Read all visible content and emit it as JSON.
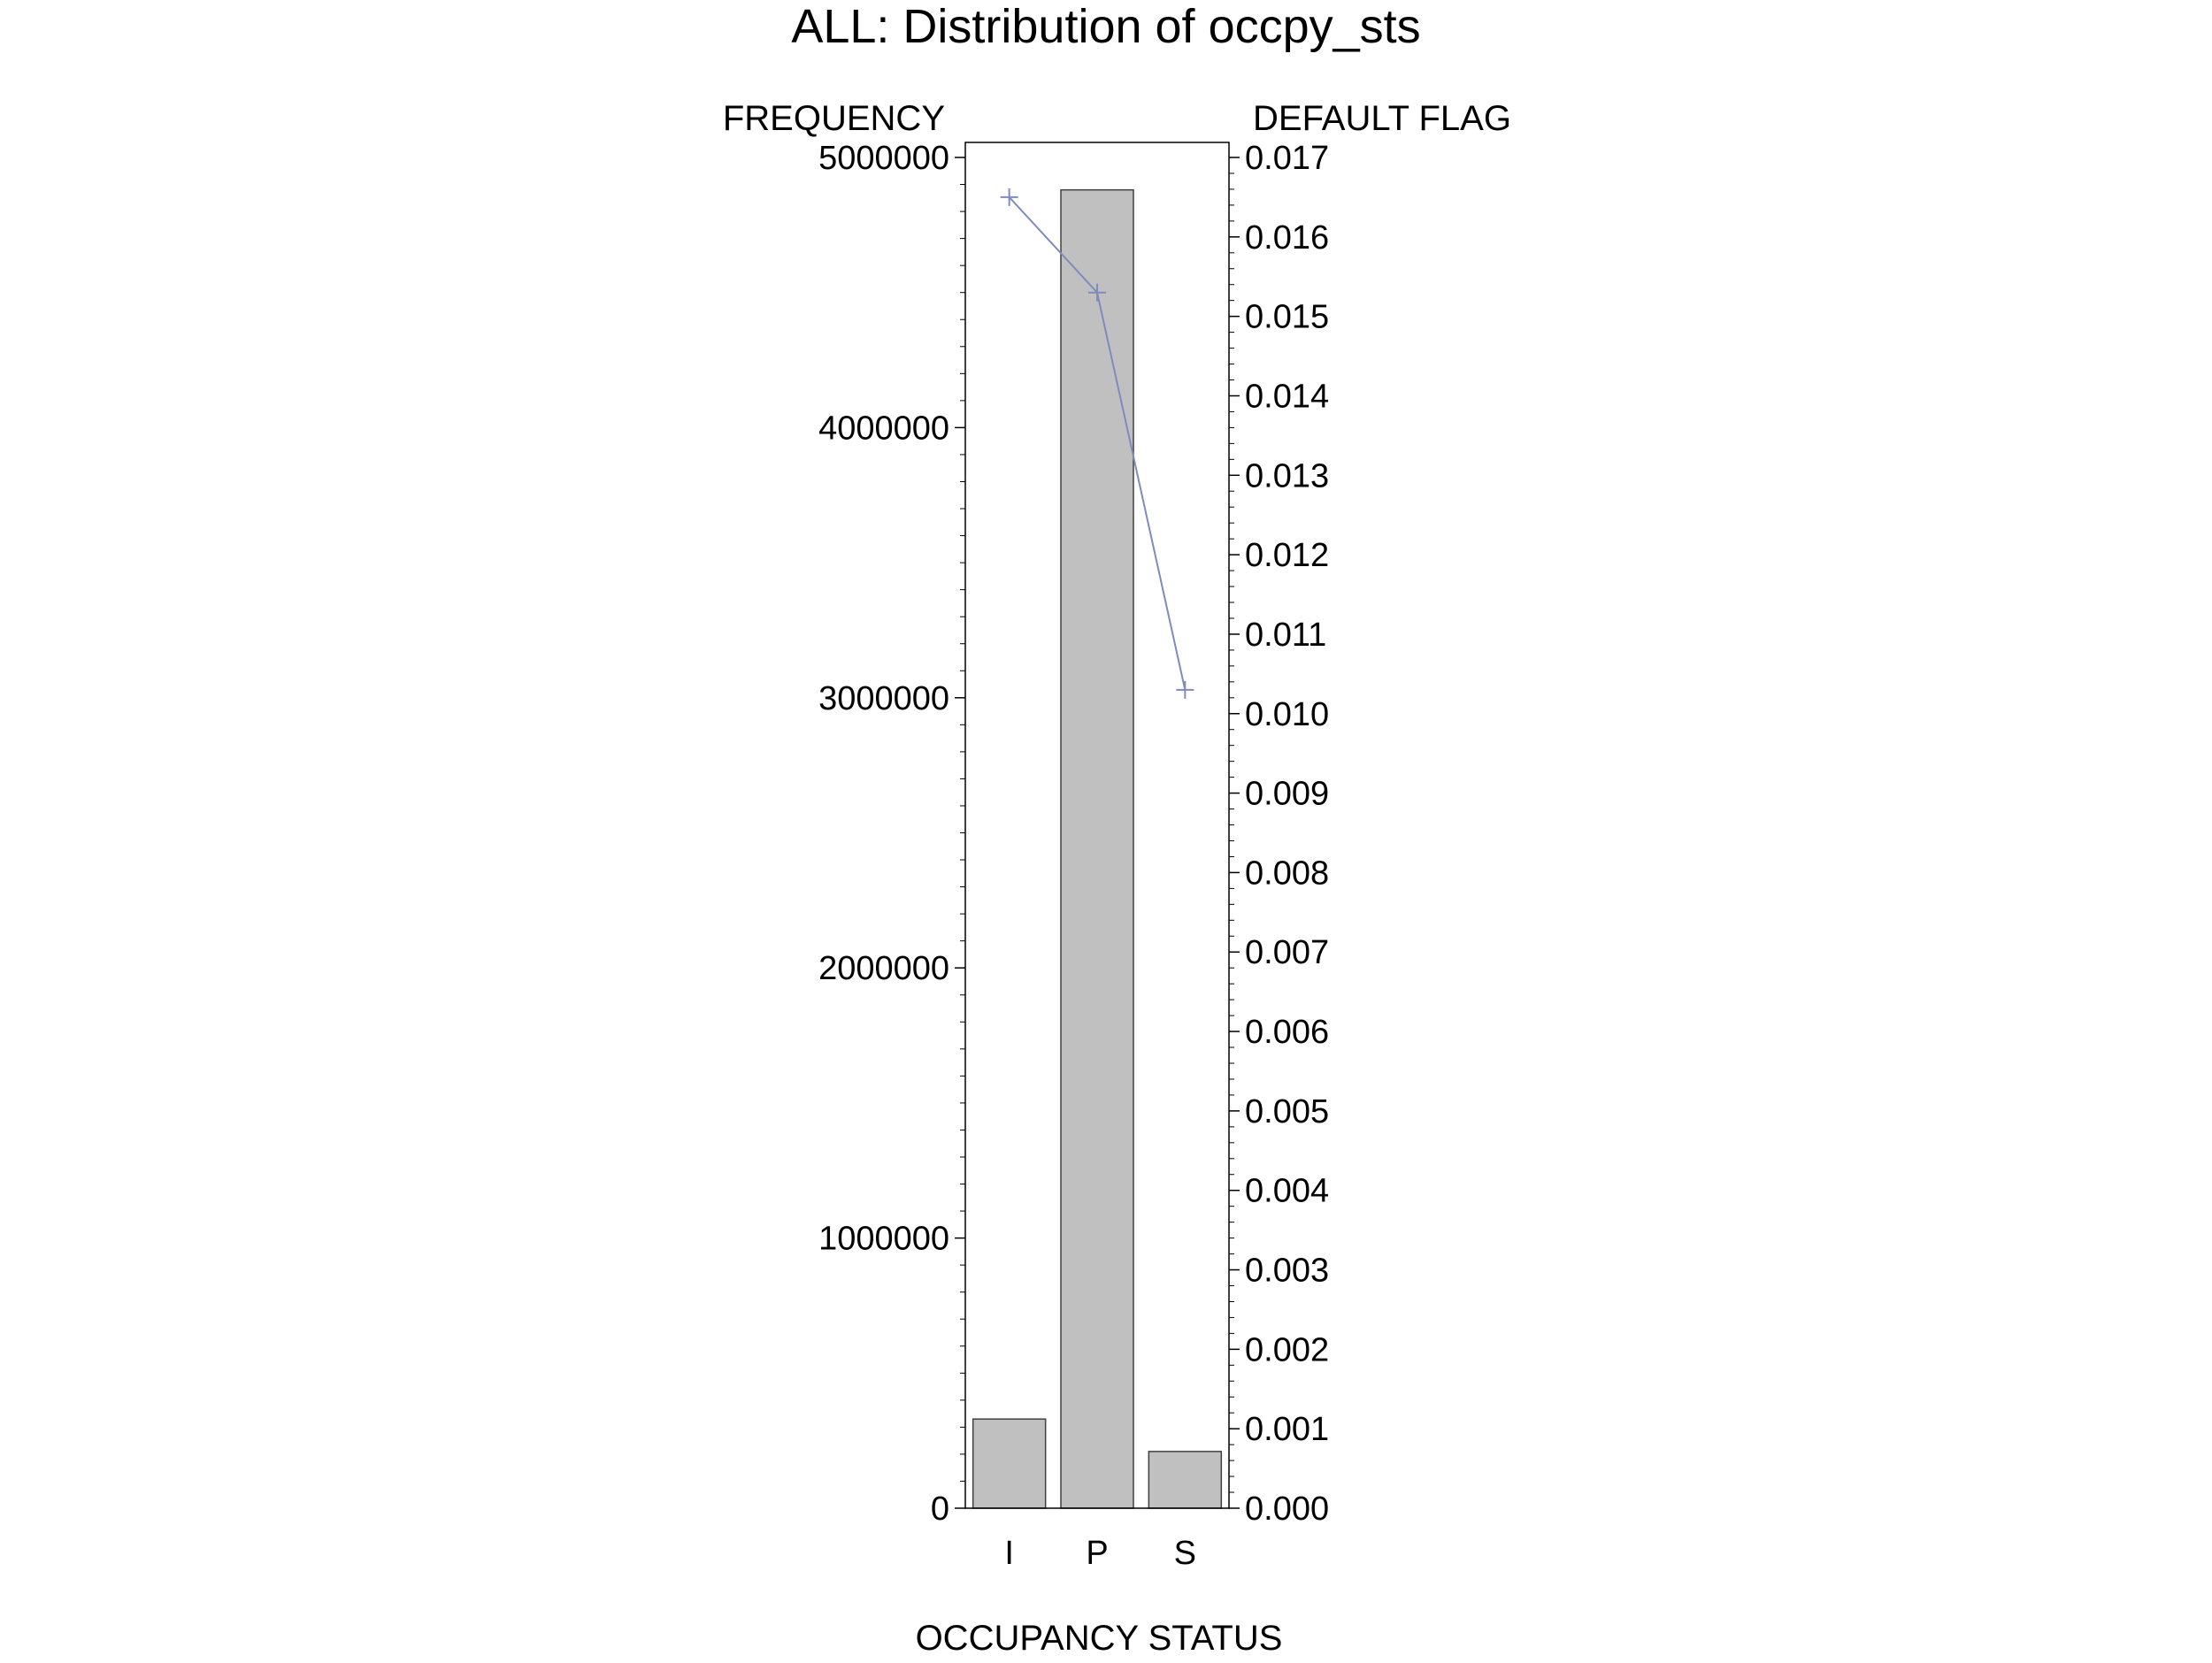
{
  "colors": {
    "background": "#ffffff",
    "bar_fill": "#c0c0c0",
    "bar_stroke": "#404040",
    "line": "#7f8bbd",
    "axis": "#000000"
  },
  "chart_data": {
    "type": "bar",
    "title": "ALL: Distribution of occpy_sts",
    "xlabel": "OCCUPANCY STATUS",
    "ylabel": "FREQUENCY",
    "y2label": "DEFAULT FLAG",
    "categories": [
      "I",
      "P",
      "S"
    ],
    "ylim": [
      0,
      5000000
    ],
    "y_ticks": [
      "0",
      "1000000",
      "2000000",
      "3000000",
      "4000000",
      "5000000"
    ],
    "y2lim": [
      0,
      0.017
    ],
    "y2_ticks": [
      "0.000",
      "0.001",
      "0.002",
      "0.003",
      "0.004",
      "0.005",
      "0.006",
      "0.007",
      "0.008",
      "0.009",
      "0.010",
      "0.011",
      "0.012",
      "0.013",
      "0.014",
      "0.015",
      "0.016",
      "0.017"
    ],
    "grid": false,
    "legend": "none",
    "series": [
      {
        "name": "FREQUENCY",
        "type": "bar",
        "axis": "left",
        "values": [
          330000,
          4880000,
          210000
        ]
      },
      {
        "name": "DEFAULT FLAG",
        "type": "line",
        "axis": "right",
        "marker": "plus",
        "values": [
          0.0165,
          0.0153,
          0.0103
        ]
      }
    ]
  }
}
